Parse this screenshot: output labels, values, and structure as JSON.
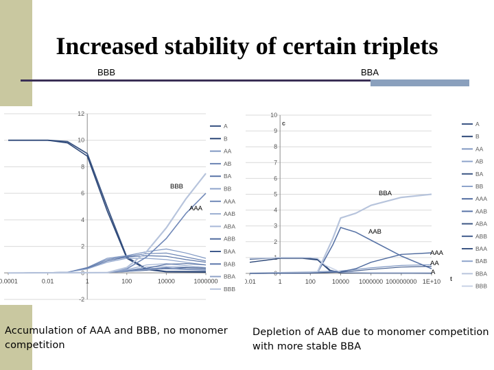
{
  "slide": {
    "title": "Increased stability of certain triplets",
    "left_heading": "BBB",
    "right_heading": "BBA",
    "left_caption": "Accumulation of AAA and BBB, no monomer competition",
    "right_caption": "Depletion of AAB due to monomer competition with more stable BBA"
  },
  "colors": {
    "side_band": "#c9c8a0",
    "rule": "#3a2f55",
    "rule_accent": "#8aa0bd",
    "series_dark": "#3b5583",
    "series_light": "#b7c4dc"
  },
  "chart_data": [
    {
      "type": "line",
      "title": "",
      "xlabel": "",
      "ylabel": "",
      "x_scale": "log",
      "x_ticks": [
        "0.0001",
        "0.01",
        "1",
        "100",
        "10000",
        "1000000"
      ],
      "y_ticks": [
        "-2",
        "0",
        "2",
        "4",
        "6",
        "8",
        "10",
        "12"
      ],
      "ylim": [
        -2,
        12
      ],
      "xlim": [
        0.0001,
        1000000
      ],
      "legend_position": "right",
      "legend": [
        "A",
        "B",
        "AA",
        "AB",
        "BA",
        "BB",
        "AAA",
        "AAB",
        "ABA",
        "ABB",
        "BAA",
        "BAB",
        "BBA",
        "BBB"
      ],
      "annotations": [
        "BBB",
        "AAA"
      ],
      "series": [
        {
          "name": "A",
          "color": "#3b5583",
          "width": 1.8,
          "x": [
            0.0001,
            0.01,
            0.1,
            1,
            10,
            100,
            1000,
            10000,
            1000000
          ],
          "y": [
            10,
            10,
            9.9,
            9,
            5,
            1.2,
            0.3,
            0.1,
            0.1
          ]
        },
        {
          "name": "B",
          "color": "#2a4576",
          "width": 1.5,
          "x": [
            0.0001,
            0.01,
            0.1,
            1,
            10,
            100,
            1000,
            10000,
            1000000
          ],
          "y": [
            10,
            10,
            9.8,
            8.8,
            4.7,
            1.1,
            0.25,
            0.08,
            0.05
          ]
        },
        {
          "name": "AA",
          "color": "#7f97c2",
          "width": 1.2,
          "x": [
            0.0001,
            0.1,
            1,
            10,
            100,
            1000,
            10000,
            100000,
            1000000
          ],
          "y": [
            0,
            0.05,
            0.4,
            1.1,
            1.3,
            1.6,
            1.8,
            1.5,
            1.1
          ]
        },
        {
          "name": "AB",
          "color": "#6a83b3",
          "width": 1.2,
          "x": [
            0.0001,
            0.1,
            1,
            10,
            100,
            1000,
            10000,
            100000,
            1000000
          ],
          "y": [
            0,
            0.05,
            0.4,
            1.0,
            1.25,
            1.45,
            1.5,
            1.2,
            0.9
          ]
        },
        {
          "name": "BA",
          "color": "#5873a6",
          "width": 1.2,
          "x": [
            0.0001,
            0.1,
            1,
            10,
            100,
            1000,
            10000,
            100000,
            1000000
          ],
          "y": [
            0,
            0.05,
            0.35,
            0.9,
            1.2,
            1.3,
            1.25,
            1.0,
            0.8
          ]
        },
        {
          "name": "BB",
          "color": "#8da3cb",
          "width": 1.2,
          "x": [
            0.0001,
            0.1,
            1,
            10,
            100,
            1000,
            10000,
            100000,
            1000000
          ],
          "y": [
            0,
            0.05,
            0.3,
            0.8,
            1.1,
            1.1,
            1.0,
            0.8,
            0.6
          ]
        },
        {
          "name": "AAA",
          "color": "#7088b8",
          "width": 1.6,
          "x": [
            0.0001,
            10,
            100,
            1000,
            10000,
            100000,
            1000000
          ],
          "y": [
            0,
            0.02,
            0.3,
            1.2,
            2.6,
            4.5,
            6.0
          ]
        },
        {
          "name": "AAB",
          "color": "#9aaed1",
          "width": 1.2,
          "x": [
            0.0001,
            10,
            100,
            1000,
            10000,
            100000,
            1000000
          ],
          "y": [
            0,
            0.02,
            0.25,
            0.6,
            0.7,
            0.55,
            0.4
          ]
        },
        {
          "name": "ABA",
          "color": "#a7b8d8",
          "width": 1.2,
          "x": [
            0.0001,
            10,
            100,
            1000,
            10000,
            100000,
            1000000
          ],
          "y": [
            0,
            0.02,
            0.2,
            0.45,
            0.5,
            0.45,
            0.35
          ]
        },
        {
          "name": "ABB",
          "color": "#4e6a9e",
          "width": 1.2,
          "x": [
            0.0001,
            10,
            100,
            1000,
            10000,
            100000,
            1000000
          ],
          "y": [
            0,
            0.02,
            0.15,
            0.35,
            0.65,
            0.7,
            0.6
          ]
        },
        {
          "name": "BAA",
          "color": "#3f5a8c",
          "width": 1.2,
          "x": [
            0.0001,
            10,
            100,
            1000,
            10000,
            100000,
            1000000
          ],
          "y": [
            0,
            0.02,
            0.1,
            0.2,
            0.35,
            0.4,
            0.35
          ]
        },
        {
          "name": "BAB",
          "color": "#5c77aa",
          "width": 1.2,
          "x": [
            0.0001,
            10,
            100,
            1000,
            10000,
            100000,
            1000000
          ],
          "y": [
            0,
            0.02,
            0.12,
            0.3,
            0.4,
            0.3,
            0.25
          ]
        },
        {
          "name": "BBA",
          "color": "#8fa2c7",
          "width": 1.2,
          "x": [
            0.0001,
            10,
            100,
            1000,
            10000,
            100000,
            1000000
          ],
          "y": [
            0,
            0.02,
            0.1,
            0.25,
            0.3,
            0.25,
            0.2
          ]
        },
        {
          "name": "BBB",
          "color": "#b7c4dc",
          "width": 2.2,
          "x": [
            0.0001,
            10,
            100,
            1000,
            10000,
            100000,
            1000000
          ],
          "y": [
            0,
            0.02,
            0.4,
            1.6,
            3.4,
            5.6,
            7.5
          ]
        }
      ]
    },
    {
      "type": "line",
      "title": "",
      "xlabel": "t",
      "ylabel": "c",
      "x_scale": "log",
      "x_ticks": [
        "0.01",
        "1",
        "100",
        "10000",
        "1000000",
        "100000000",
        "1E+10"
      ],
      "y_ticks": [
        "0",
        "1",
        "2",
        "3",
        "4",
        "5",
        "6",
        "7",
        "8",
        "9",
        "10"
      ],
      "ylim": [
        0,
        10
      ],
      "xlim": [
        0.01,
        10000000000
      ],
      "legend_position": "right",
      "legend": [
        "A",
        "B",
        "AA",
        "AB",
        "BA",
        "BB",
        "AAA",
        "AAB",
        "ABA",
        "ABB",
        "BAA",
        "BAB",
        "BBA",
        "BBB"
      ],
      "annotations": [
        "BBA",
        "AAB",
        "AAA",
        "AA",
        "A"
      ],
      "series": [
        {
          "name": "A",
          "color": "#3b5583",
          "width": 1.6,
          "x": [
            0.01,
            1,
            30,
            300,
            2000,
            10000,
            1000000,
            10000000000
          ],
          "y": [
            0.9,
            1.0,
            1.0,
            0.9,
            0.2,
            0.05,
            0.02,
            0.01
          ]
        },
        {
          "name": "B",
          "color": "#2a4576",
          "width": 1.4,
          "x": [
            0.01,
            1,
            30,
            300,
            2000,
            10000,
            1000000,
            10000000000
          ],
          "y": [
            0.7,
            0.95,
            0.95,
            0.85,
            0.15,
            0.04,
            0.02,
            0.01
          ]
        },
        {
          "name": "AA",
          "color": "#7f97c2",
          "width": 1.2,
          "x": [
            0.01,
            1,
            100,
            10000,
            1000000,
            100000000,
            10000000000
          ],
          "y": [
            0,
            0.02,
            0.1,
            0.15,
            0.35,
            0.5,
            0.55
          ]
        },
        {
          "name": "AAA",
          "color": "#4e6a9e",
          "width": 1.4,
          "x": [
            0.01,
            100,
            10000,
            100000,
            1000000,
            100000000,
            10000000000
          ],
          "y": [
            0,
            0.02,
            0.1,
            0.3,
            0.7,
            1.2,
            1.3
          ]
        },
        {
          "name": "AAB",
          "color": "#5873a6",
          "width": 1.6,
          "x": [
            0.01,
            300,
            3000,
            10000,
            100000,
            1000000,
            100000000,
            10000000000
          ],
          "y": [
            0,
            0.05,
            1.8,
            2.9,
            2.6,
            2.1,
            1.1,
            0.3
          ]
        },
        {
          "name": "BBA",
          "color": "#b7c4dc",
          "width": 2.2,
          "x": [
            0.01,
            300,
            3000,
            10000,
            100000,
            1000000,
            100000000,
            10000000000
          ],
          "y": [
            0,
            0.1,
            2.2,
            3.5,
            3.8,
            4.3,
            4.8,
            5.0
          ]
        },
        {
          "name": "BBB",
          "color": "#c8d2e6",
          "width": 1.6,
          "x": [
            0.01,
            1,
            100,
            300,
            1000,
            10000,
            1000000,
            10000000000
          ],
          "y": [
            0.95,
            1.0,
            1.0,
            0.95,
            0.5,
            0.08,
            0.05,
            0.05
          ]
        },
        {
          "name": "ABB",
          "color": "#3f5a8c",
          "width": 1.2,
          "x": [
            0.01,
            100,
            10000,
            1000000,
            100000000,
            10000000000
          ],
          "y": [
            0,
            0.02,
            0.08,
            0.25,
            0.4,
            0.45
          ]
        }
      ]
    }
  ]
}
